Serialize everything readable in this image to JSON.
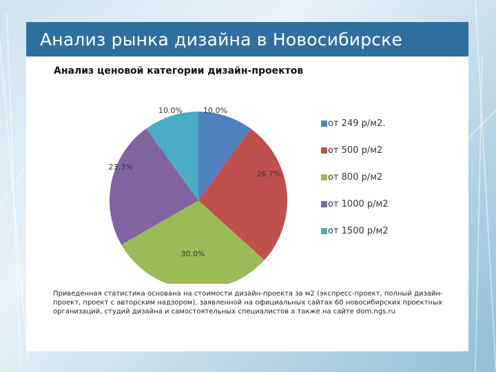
{
  "slide": {
    "title": "Анализ рынка дизайна в Новосибирске",
    "note": "Приведенная статистика основана на стоимости дизайн-проекта за м2 (экспресс-проект, полный дизайн-проект, проект с авторским надзором), заявленной на официальных сайтах 60 новосибирских проектных организаций, студий дизайна и самостоятельных специалистов а также на сайте dom.ngs.ru"
  },
  "chart_data": {
    "type": "pie",
    "title": "Анализ ценовой категории дизайн-проектов",
    "categories": [
      "от 249 р/м2.",
      "от 500 р/м2",
      "от 800 р/м2",
      "от 1000 р/м2",
      "от 1500 р/м2"
    ],
    "values": [
      10.0,
      26.7,
      30.0,
      23.3,
      10.0
    ],
    "data_labels": [
      "10.0%",
      "26.7%",
      "30.0%",
      "23.3%",
      "10.0%"
    ],
    "colors": [
      "#4e81bd",
      "#c0504d",
      "#9bbb59",
      "#8064a2",
      "#4aacc6"
    ],
    "legend_position": "right"
  }
}
